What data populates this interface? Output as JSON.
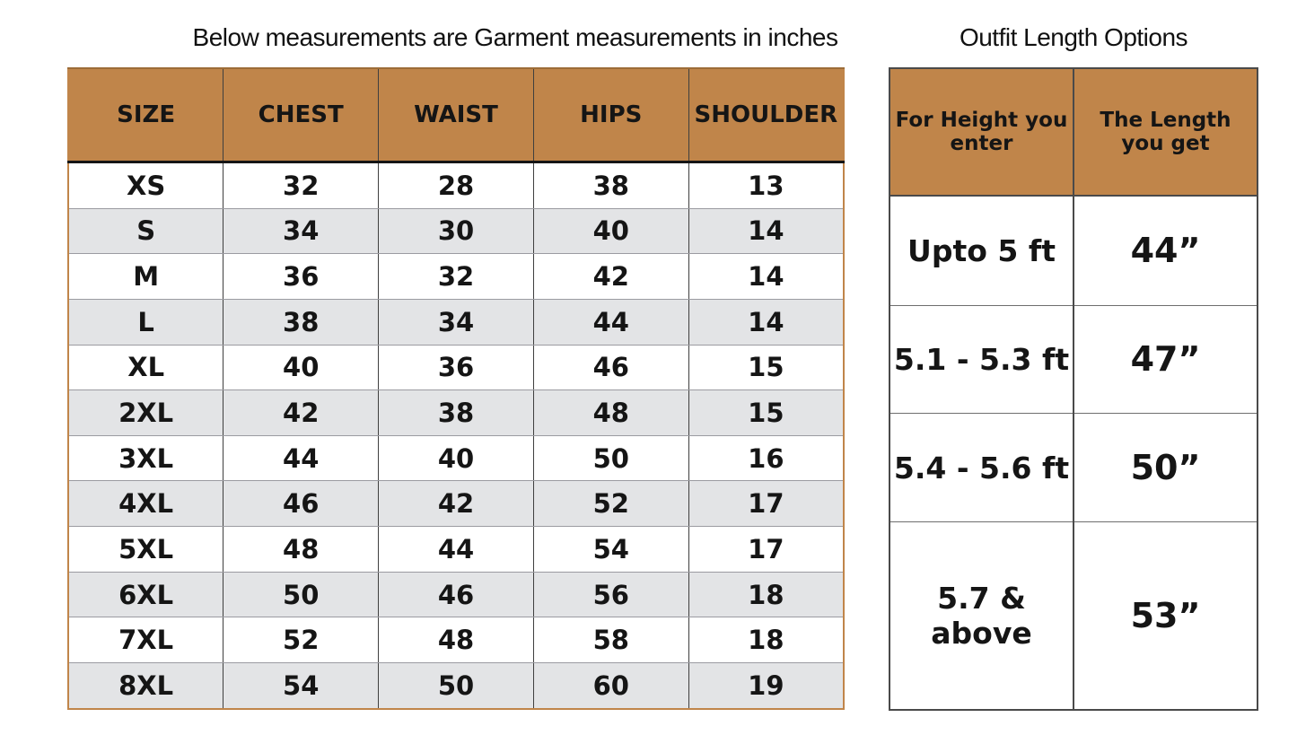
{
  "colors": {
    "header_bg": "#c0854a",
    "alt_row_bg": "#e3e4e6",
    "row_bg": "#ffffff",
    "text": "#151515",
    "left_outer_border": "#c0854a",
    "left_header_top": "#9c6c38",
    "left_grid": "#3f3f3f",
    "left_row_line": "#9b9ba1",
    "right_border": "#4a4a4a",
    "right_row_line": "#6e6e6e"
  },
  "chart_data": [
    {
      "type": "table",
      "title": "Below measurements are Garment measurements in inches",
      "columns": [
        "SIZE",
        "CHEST",
        "WAIST",
        "HIPS",
        "SHOULDER"
      ],
      "rows": [
        [
          "XS",
          "32",
          "28",
          "38",
          "13"
        ],
        [
          "S",
          "34",
          "30",
          "40",
          "14"
        ],
        [
          "M",
          "36",
          "32",
          "42",
          "14"
        ],
        [
          "L",
          "38",
          "34",
          "44",
          "14"
        ],
        [
          "XL",
          "40",
          "36",
          "46",
          "15"
        ],
        [
          "2XL",
          "42",
          "38",
          "48",
          "15"
        ],
        [
          "3XL",
          "44",
          "40",
          "50",
          "16"
        ],
        [
          "4XL",
          "46",
          "42",
          "52",
          "17"
        ],
        [
          "5XL",
          "48",
          "44",
          "54",
          "17"
        ],
        [
          "6XL",
          "50",
          "46",
          "56",
          "18"
        ],
        [
          "7XL",
          "52",
          "48",
          "58",
          "18"
        ],
        [
          "8XL",
          "54",
          "50",
          "60",
          "19"
        ]
      ]
    },
    {
      "type": "table",
      "title": "Outfit Length Options",
      "columns": [
        "For Height you enter",
        "The Length you get"
      ],
      "rows": [
        [
          "Upto 5 ft",
          "44”"
        ],
        [
          "5.1 - 5.3 ft",
          "47”"
        ],
        [
          "5.4 - 5.6 ft",
          "50”"
        ],
        [
          "5.7 & above",
          "53”"
        ]
      ]
    }
  ]
}
